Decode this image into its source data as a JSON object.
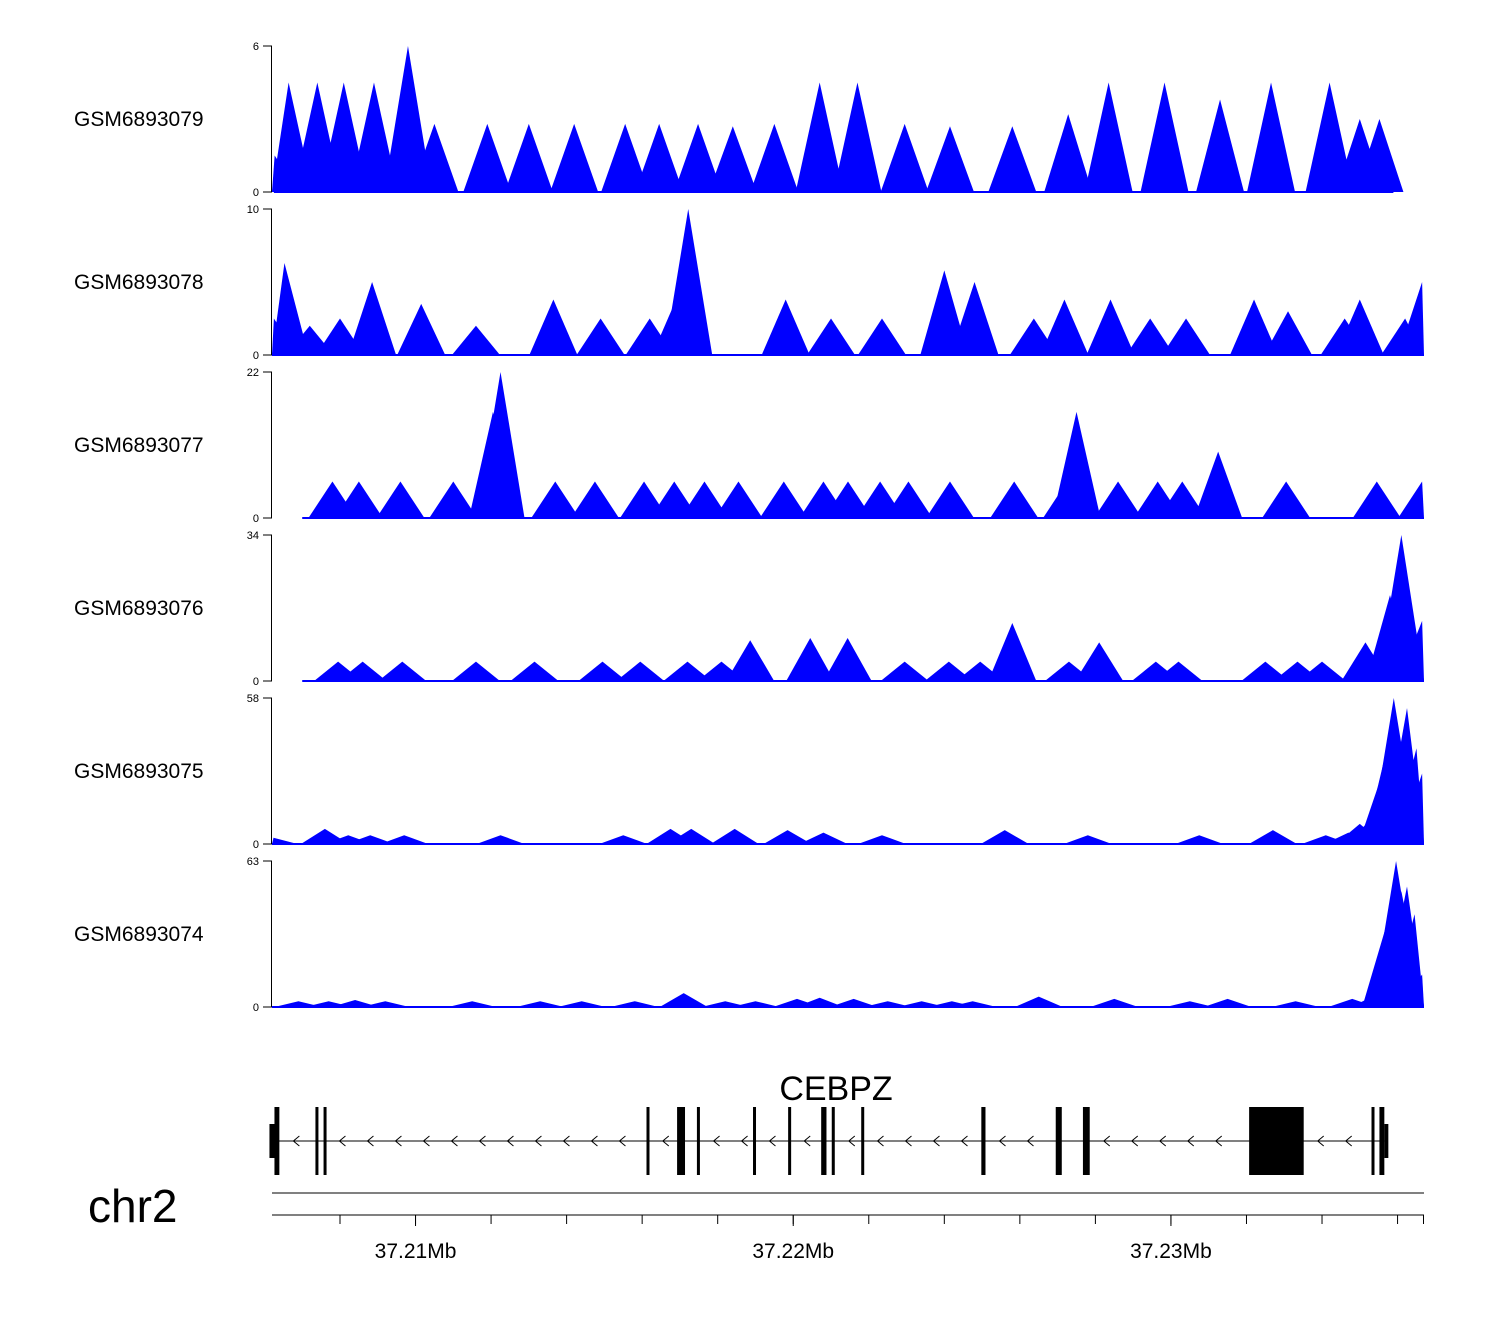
{
  "chart_data": {
    "type": "area",
    "chromosome": "chr2",
    "gene": {
      "name": "CEBPZ",
      "strand": "-",
      "exons_bp": [
        [
          37206265,
          37206395
        ],
        [
          37207350,
          37207420
        ],
        [
          37207565,
          37207615
        ],
        [
          37216115,
          37216175
        ],
        [
          37216925,
          37217135
        ],
        [
          37217450,
          37217520
        ],
        [
          37218935,
          37219000
        ],
        [
          37219865,
          37219920
        ],
        [
          37220740,
          37220880
        ],
        [
          37221020,
          37221100
        ],
        [
          37221800,
          37221860
        ],
        [
          37224980,
          37225090
        ],
        [
          37226950,
          37227110
        ],
        [
          37227670,
          37227850
        ],
        [
          37232070,
          37233515
        ],
        [
          37235310,
          37235380
        ],
        [
          37235520,
          37235650
        ]
      ]
    },
    "x_axis": {
      "range_bp": [
        37206200,
        37236700
      ],
      "tick_labels": [
        "37.21Mb",
        "37.22Mb",
        "37.23Mb"
      ],
      "tick_values_bp": [
        37210000,
        37220000,
        37230000
      ]
    },
    "tracks": [
      {
        "name": "GSM6893079",
        "ylim": [
          0,
          6
        ],
        "peaks": [
          [
            37206270,
            1.5
          ],
          [
            37206640,
            4.5
          ],
          [
            37207400,
            4.5
          ],
          [
            37208100,
            4.5
          ],
          [
            37208900,
            4.5
          ],
          [
            37209650,
            2.7
          ],
          [
            37209800,
            6
          ],
          [
            37210500,
            2.8
          ],
          [
            37211900,
            2.8
          ],
          [
            37213000,
            2.8
          ],
          [
            37214200,
            2.8
          ],
          [
            37215550,
            2.8
          ],
          [
            37216450,
            2.8
          ],
          [
            37217480,
            2.8
          ],
          [
            37218400,
            2.7
          ],
          [
            37219500,
            2.8
          ],
          [
            37220700,
            4.5
          ],
          [
            37221700,
            4.5
          ],
          [
            37222950,
            2.8
          ],
          [
            37224150,
            2.7
          ],
          [
            37225800,
            2.7
          ],
          [
            37227280,
            3.2
          ],
          [
            37228350,
            4.5
          ],
          [
            37229830,
            4.5
          ],
          [
            37231300,
            3.8
          ],
          [
            37232650,
            4.5
          ],
          [
            37234200,
            4.5
          ],
          [
            37235000,
            3.0
          ],
          [
            37235520,
            3.0
          ]
        ],
        "baselines_bp": [
          [
            37206250,
            37235890
          ]
        ]
      },
      {
        "name": "GSM6893078",
        "ylim": [
          0,
          10
        ],
        "peaks": [
          [
            37206250,
            2.5
          ],
          [
            37206530,
            6.3
          ],
          [
            37207200,
            2.0
          ],
          [
            37208000,
            2.5
          ],
          [
            37208850,
            5.0
          ],
          [
            37210150,
            3.5
          ],
          [
            37211600,
            2.0
          ],
          [
            37213650,
            3.8
          ],
          [
            37214900,
            2.5
          ],
          [
            37216200,
            2.5
          ],
          [
            37216900,
            3.8
          ],
          [
            37217220,
            10
          ],
          [
            37219800,
            3.8
          ],
          [
            37221000,
            2.5
          ],
          [
            37222350,
            2.5
          ],
          [
            37224000,
            5.8
          ],
          [
            37224800,
            5.0
          ],
          [
            37226370,
            2.5
          ],
          [
            37227180,
            3.8
          ],
          [
            37228400,
            3.8
          ],
          [
            37229450,
            2.5
          ],
          [
            37230400,
            2.5
          ],
          [
            37232200,
            3.8
          ],
          [
            37233100,
            3.0
          ],
          [
            37234600,
            2.5
          ],
          [
            37235000,
            3.8
          ],
          [
            37236200,
            2.5
          ],
          [
            37236650,
            5.0
          ]
        ],
        "baselines_bp": [
          [
            37206200,
            37236700
          ]
        ]
      },
      {
        "name": "GSM6893077",
        "ylim": [
          0,
          22
        ],
        "peaks": [
          [
            37207800,
            5.5
          ],
          [
            37208500,
            5.5
          ],
          [
            37209600,
            5.5
          ],
          [
            37211000,
            5.5
          ],
          [
            37212050,
            16
          ],
          [
            37212250,
            22
          ],
          [
            37213700,
            5.5
          ],
          [
            37214750,
            5.5
          ],
          [
            37216050,
            5.5
          ],
          [
            37216850,
            5.5
          ],
          [
            37217650,
            5.5
          ],
          [
            37218550,
            5.5
          ],
          [
            37219750,
            5.5
          ],
          [
            37220800,
            5.5
          ],
          [
            37221450,
            5.5
          ],
          [
            37222300,
            5.5
          ],
          [
            37223050,
            5.5
          ],
          [
            37224150,
            5.5
          ],
          [
            37225850,
            5.5
          ],
          [
            37227250,
            5.5
          ],
          [
            37227500,
            16
          ],
          [
            37228600,
            5.5
          ],
          [
            37229650,
            5.5
          ],
          [
            37230300,
            5.5
          ],
          [
            37231250,
            10
          ],
          [
            37233050,
            5.5
          ],
          [
            37235450,
            5.5
          ],
          [
            37236650,
            5.5
          ]
        ],
        "baselines_bp": [
          [
            37207000,
            37236700
          ]
        ]
      },
      {
        "name": "GSM6893076",
        "ylim": [
          0,
          34
        ],
        "peaks": [
          [
            37207950,
            4.5
          ],
          [
            37208600,
            4.5
          ],
          [
            37209650,
            4.5
          ],
          [
            37211600,
            4.5
          ],
          [
            37213150,
            4.5
          ],
          [
            37214950,
            4.5
          ],
          [
            37215950,
            4.5
          ],
          [
            37217200,
            4.5
          ],
          [
            37218100,
            4.5
          ],
          [
            37218860,
            9.5
          ],
          [
            37220450,
            10
          ],
          [
            37221440,
            10
          ],
          [
            37222950,
            4.5
          ],
          [
            37224120,
            4.5
          ],
          [
            37224950,
            4.5
          ],
          [
            37225800,
            13.5
          ],
          [
            37227300,
            4.5
          ],
          [
            37228100,
            9.0
          ],
          [
            37229600,
            4.5
          ],
          [
            37230200,
            4.5
          ],
          [
            37232500,
            4.5
          ],
          [
            37233350,
            4.5
          ],
          [
            37234000,
            4.5
          ],
          [
            37235150,
            9.0
          ],
          [
            37235800,
            20.0
          ],
          [
            37236100,
            34.0
          ],
          [
            37236250,
            16.0
          ],
          [
            37236450,
            13.5
          ],
          [
            37236650,
            14.0
          ]
        ],
        "baselines_bp": [
          [
            37207000,
            37236700
          ]
        ]
      },
      {
        "name": "GSM6893075",
        "ylim": [
          0,
          58
        ],
        "peaks": [
          [
            37206240,
            2.5
          ],
          [
            37207600,
            6.0
          ],
          [
            37208220,
            3.5
          ],
          [
            37208800,
            3.5
          ],
          [
            37209700,
            3.5
          ],
          [
            37212250,
            3.5
          ],
          [
            37215500,
            3.5
          ],
          [
            37216750,
            6.0
          ],
          [
            37217300,
            6.0
          ],
          [
            37218450,
            6.0
          ],
          [
            37219850,
            5.5
          ],
          [
            37220800,
            4.5
          ],
          [
            37222350,
            3.5
          ],
          [
            37225600,
            5.5
          ],
          [
            37227800,
            3.5
          ],
          [
            37230750,
            3.5
          ],
          [
            37232700,
            5.5
          ],
          [
            37234100,
            3.5
          ],
          [
            37234700,
            4.5
          ],
          [
            37235000,
            8.0
          ],
          [
            37235300,
            10.0
          ],
          [
            37235600,
            28.0
          ],
          [
            37235750,
            40.0
          ],
          [
            37235900,
            58.0
          ],
          [
            37236050,
            38.0
          ],
          [
            37236250,
            54.0
          ],
          [
            37236500,
            38.0
          ],
          [
            37236650,
            28.0
          ]
        ],
        "baselines_bp": [
          [
            37206200,
            37236700
          ]
        ]
      },
      {
        "name": "GSM6893074",
        "ylim": [
          0,
          63
        ],
        "peaks": [
          [
            37206900,
            2.5
          ],
          [
            37207700,
            2.5
          ],
          [
            37208400,
            3.0
          ],
          [
            37209200,
            2.5
          ],
          [
            37211500,
            2.5
          ],
          [
            37213300,
            2.5
          ],
          [
            37214400,
            2.5
          ],
          [
            37215800,
            2.5
          ],
          [
            37217100,
            6.0
          ],
          [
            37218200,
            2.5
          ],
          [
            37219000,
            2.5
          ],
          [
            37220100,
            3.5
          ],
          [
            37220700,
            4.0
          ],
          [
            37221600,
            3.5
          ],
          [
            37222500,
            2.5
          ],
          [
            37223400,
            2.5
          ],
          [
            37224200,
            2.5
          ],
          [
            37224750,
            2.5
          ],
          [
            37226500,
            4.5
          ],
          [
            37228500,
            3.5
          ],
          [
            37230500,
            2.5
          ],
          [
            37231500,
            3.5
          ],
          [
            37233300,
            2.5
          ],
          [
            37234800,
            3.5
          ],
          [
            37235400,
            5.0
          ],
          [
            37235700,
            35.0
          ],
          [
            37235960,
            63.0
          ],
          [
            37236100,
            50.0
          ],
          [
            37236250,
            52.0
          ],
          [
            37236450,
            40.0
          ],
          [
            37236650,
            14.0
          ]
        ],
        "baselines_bp": [
          [
            37206200,
            37236700
          ]
        ]
      }
    ]
  }
}
